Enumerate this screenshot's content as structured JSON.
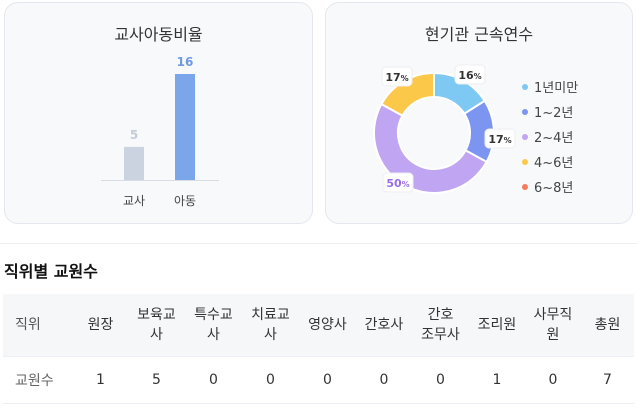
{
  "ratio_card": {
    "title": "교사아동비율",
    "chart_data": {
      "type": "bar",
      "categories": [
        "교사",
        "아동"
      ],
      "values": [
        5,
        16
      ],
      "colors": [
        "#ccd3e0",
        "#7ba6ea"
      ],
      "label_colors": [
        "#c5ccd8",
        "#6f9ae0"
      ]
    }
  },
  "tenure_card": {
    "title": "현기관 근속연수",
    "chart_data": {
      "type": "pie",
      "categories": [
        "1년미만",
        "1~2년",
        "2~4년",
        "4~6년",
        "6~8년"
      ],
      "values": [
        16,
        17,
        50,
        17,
        0
      ],
      "colors": [
        "#7ec8f4",
        "#7b95f0",
        "#c0a6f2",
        "#fcc84a",
        "#f47a5e"
      ],
      "data_labels": [
        {
          "label": "16",
          "unit": "%"
        },
        {
          "label": "17",
          "unit": "%"
        },
        {
          "label": "50",
          "unit": "%"
        },
        {
          "label": "17",
          "unit": "%"
        },
        null
      ],
      "legend_position": "right"
    }
  },
  "staff_section": {
    "title": "직위별 교원수",
    "headers": [
      [
        "직위"
      ],
      [
        "원장"
      ],
      [
        "보육교",
        "사"
      ],
      [
        "특수교",
        "사"
      ],
      [
        "치료교",
        "사"
      ],
      [
        "영양사"
      ],
      [
        "간호사"
      ],
      [
        "간호",
        "조무사"
      ],
      [
        "조리원"
      ],
      [
        "사무직",
        "원"
      ],
      [
        "총원"
      ]
    ],
    "row": [
      "교원수",
      "1",
      "5",
      "0",
      "0",
      "0",
      "0",
      "0",
      "1",
      "0",
      "7"
    ]
  }
}
